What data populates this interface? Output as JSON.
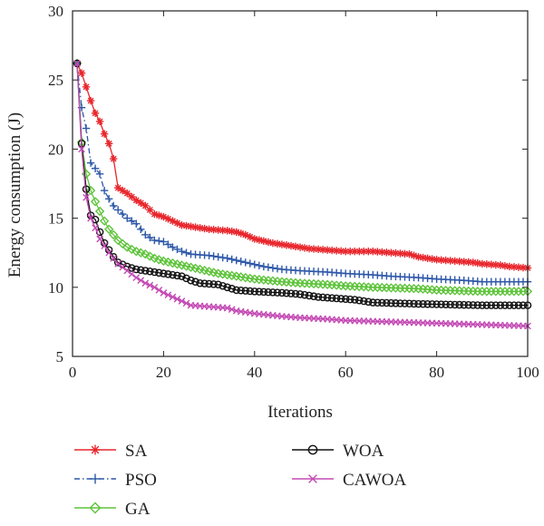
{
  "chart_data": {
    "type": "line",
    "title": "",
    "xlabel": "Iterations",
    "ylabel": "Energy consumption (J)",
    "xlim": [
      0,
      100
    ],
    "ylim": [
      5,
      30
    ],
    "x_ticks": [
      0,
      20,
      40,
      60,
      80,
      100
    ],
    "y_ticks": [
      5,
      10,
      15,
      20,
      25,
      30
    ],
    "grid": false,
    "legend_position": "bottom",
    "series": [
      {
        "name": "SA",
        "color": "#e8262c",
        "marker": "asterisk",
        "line_style": "solid",
        "points": [
          [
            1,
            26.2
          ],
          [
            2,
            25.5
          ],
          [
            3,
            24.5
          ],
          [
            4,
            23.5
          ],
          [
            5,
            22.6
          ],
          [
            6,
            22.0
          ],
          [
            7,
            21.1
          ],
          [
            8,
            20.4
          ],
          [
            9,
            19.3
          ],
          [
            10,
            17.2
          ],
          [
            12,
            16.8
          ],
          [
            14,
            16.3
          ],
          [
            16,
            15.9
          ],
          [
            18,
            15.3
          ],
          [
            20,
            15.1
          ],
          [
            22,
            14.8
          ],
          [
            24,
            14.5
          ],
          [
            26,
            14.4
          ],
          [
            28,
            14.3
          ],
          [
            30,
            14.2
          ],
          [
            34,
            14.1
          ],
          [
            36,
            14.0
          ],
          [
            38,
            13.8
          ],
          [
            40,
            13.5
          ],
          [
            44,
            13.2
          ],
          [
            48,
            13.0
          ],
          [
            52,
            12.8
          ],
          [
            56,
            12.7
          ],
          [
            60,
            12.6
          ],
          [
            66,
            12.6
          ],
          [
            70,
            12.5
          ],
          [
            74,
            12.4
          ],
          [
            76,
            12.2
          ],
          [
            80,
            12.0
          ],
          [
            84,
            11.9
          ],
          [
            88,
            11.8
          ],
          [
            90,
            11.7
          ],
          [
            94,
            11.6
          ],
          [
            96,
            11.5
          ],
          [
            100,
            11.4
          ]
        ]
      },
      {
        "name": "PSO",
        "color": "#2d57a8",
        "marker": "plus",
        "line_style": "dashdot",
        "points": [
          [
            1,
            26.2
          ],
          [
            2,
            23.0
          ],
          [
            3,
            21.5
          ],
          [
            4,
            19.0
          ],
          [
            5,
            18.6
          ],
          [
            6,
            18.2
          ],
          [
            7,
            17.0
          ],
          [
            8,
            16.4
          ],
          [
            9,
            15.9
          ],
          [
            10,
            15.6
          ],
          [
            12,
            15.0
          ],
          [
            14,
            14.6
          ],
          [
            16,
            13.8
          ],
          [
            18,
            13.4
          ],
          [
            20,
            13.3
          ],
          [
            22,
            12.9
          ],
          [
            24,
            12.6
          ],
          [
            26,
            12.4
          ],
          [
            30,
            12.3
          ],
          [
            34,
            12.1
          ],
          [
            38,
            11.8
          ],
          [
            42,
            11.5
          ],
          [
            46,
            11.3
          ],
          [
            50,
            11.2
          ],
          [
            56,
            11.1
          ],
          [
            60,
            11.0
          ],
          [
            66,
            10.9
          ],
          [
            70,
            10.8
          ],
          [
            76,
            10.7
          ],
          [
            80,
            10.6
          ],
          [
            86,
            10.5
          ],
          [
            90,
            10.4
          ],
          [
            100,
            10.4
          ]
        ]
      },
      {
        "name": "GA",
        "color": "#5fc43c",
        "marker": "diamond",
        "line_style": "solid",
        "points": [
          [
            1,
            26.2
          ],
          [
            2,
            20.5
          ],
          [
            3,
            18.2
          ],
          [
            4,
            17.0
          ],
          [
            5,
            16.2
          ],
          [
            6,
            15.5
          ],
          [
            7,
            14.8
          ],
          [
            8,
            14.2
          ],
          [
            9,
            13.8
          ],
          [
            10,
            13.4
          ],
          [
            12,
            12.9
          ],
          [
            14,
            12.6
          ],
          [
            16,
            12.4
          ],
          [
            18,
            12.1
          ],
          [
            20,
            11.9
          ],
          [
            24,
            11.6
          ],
          [
            28,
            11.3
          ],
          [
            32,
            11.0
          ],
          [
            36,
            10.8
          ],
          [
            40,
            10.6
          ],
          [
            46,
            10.4
          ],
          [
            50,
            10.3
          ],
          [
            56,
            10.2
          ],
          [
            60,
            10.1
          ],
          [
            66,
            10.0
          ],
          [
            76,
            9.9
          ],
          [
            80,
            9.8
          ],
          [
            90,
            9.7
          ],
          [
            100,
            9.7
          ]
        ]
      },
      {
        "name": "WOA",
        "color": "#111111",
        "marker": "circle",
        "line_style": "solid",
        "points": [
          [
            1,
            26.2
          ],
          [
            2,
            20.4
          ],
          [
            3,
            17.1
          ],
          [
            4,
            15.2
          ],
          [
            5,
            14.9
          ],
          [
            6,
            14.0
          ],
          [
            7,
            13.2
          ],
          [
            8,
            12.7
          ],
          [
            9,
            12.2
          ],
          [
            10,
            11.8
          ],
          [
            12,
            11.5
          ],
          [
            14,
            11.3
          ],
          [
            16,
            11.2
          ],
          [
            18,
            11.1
          ],
          [
            20,
            11.0
          ],
          [
            24,
            10.8
          ],
          [
            26,
            10.5
          ],
          [
            28,
            10.3
          ],
          [
            32,
            10.2
          ],
          [
            34,
            10.0
          ],
          [
            36,
            9.8
          ],
          [
            40,
            9.7
          ],
          [
            46,
            9.6
          ],
          [
            50,
            9.5
          ],
          [
            54,
            9.3
          ],
          [
            58,
            9.2
          ],
          [
            62,
            9.1
          ],
          [
            66,
            8.9
          ],
          [
            76,
            8.8
          ],
          [
            90,
            8.7
          ],
          [
            100,
            8.7
          ]
        ]
      },
      {
        "name": "CAWOA",
        "color": "#c44bb4",
        "marker": "x",
        "line_style": "solid",
        "points": [
          [
            1,
            26.2
          ],
          [
            2,
            20.0
          ],
          [
            3,
            16.5
          ],
          [
            4,
            15.0
          ],
          [
            5,
            14.3
          ],
          [
            6,
            13.5
          ],
          [
            7,
            13.0
          ],
          [
            8,
            12.5
          ],
          [
            9,
            12.1
          ],
          [
            10,
            11.7
          ],
          [
            12,
            11.2
          ],
          [
            14,
            10.7
          ],
          [
            16,
            10.3
          ],
          [
            18,
            10.0
          ],
          [
            20,
            9.6
          ],
          [
            22,
            9.3
          ],
          [
            24,
            9.0
          ],
          [
            26,
            8.7
          ],
          [
            30,
            8.6
          ],
          [
            34,
            8.5
          ],
          [
            36,
            8.3
          ],
          [
            40,
            8.1
          ],
          [
            46,
            7.9
          ],
          [
            50,
            7.8
          ],
          [
            56,
            7.7
          ],
          [
            60,
            7.6
          ],
          [
            70,
            7.5
          ],
          [
            80,
            7.4
          ],
          [
            90,
            7.3
          ],
          [
            100,
            7.2
          ]
        ]
      }
    ]
  }
}
